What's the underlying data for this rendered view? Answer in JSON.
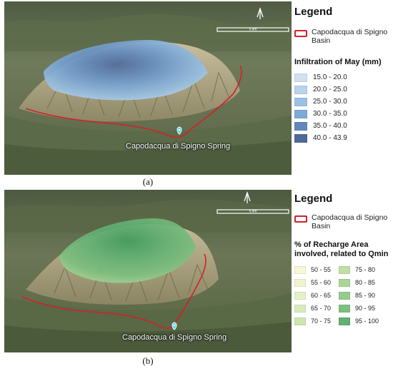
{
  "panel_a": {
    "caption": "(a)",
    "spring_label": "Capodacqua di Spigno Spring",
    "scale_label": "5 km",
    "legend": {
      "title": "Legend",
      "basin_label": "Capodacqua di Spigno Basin",
      "basin_color": "#d4202a",
      "classes_title": "Infiltration of May (mm)",
      "classes": [
        {
          "label": "15.0 - 20.0",
          "color": "#cfe1f1"
        },
        {
          "label": "20.0 - 25.0",
          "color": "#b8d4ec"
        },
        {
          "label": "25.0 - 30.0",
          "color": "#9cc2e3"
        },
        {
          "label": "30.0 - 35.0",
          "color": "#7ea9d4"
        },
        {
          "label": "35.0 - 40.0",
          "color": "#6288bb"
        },
        {
          "label": "40.0 - 43.9",
          "color": "#4e6a98"
        }
      ]
    }
  },
  "panel_b": {
    "caption": "(b)",
    "spring_label": "Capodacqua di Spigno Spring",
    "scale_label": "5 km",
    "legend": {
      "title": "Legend",
      "basin_label": "Capodacqua di Spigno Basin",
      "basin_color": "#d4202a",
      "classes_title": "% of Recharge Area involved, related to Qmin",
      "classes_left": [
        {
          "label": "50 - 55",
          "color": "#f6f9d6"
        },
        {
          "label": "55 - 60",
          "color": "#eef4cf"
        },
        {
          "label": "60 - 65",
          "color": "#e4f0c6"
        },
        {
          "label": "65 - 70",
          "color": "#d9ebbb"
        },
        {
          "label": "70 - 75",
          "color": "#cde5b0"
        }
      ],
      "classes_right": [
        {
          "label": "75 - 80",
          "color": "#bddea4"
        },
        {
          "label": "80 - 85",
          "color": "#aad598"
        },
        {
          "label": "85 - 90",
          "color": "#95cb8b"
        },
        {
          "label": "90 - 95",
          "color": "#7dbf7e"
        },
        {
          "label": "95 - 100",
          "color": "#63b074"
        }
      ]
    }
  }
}
